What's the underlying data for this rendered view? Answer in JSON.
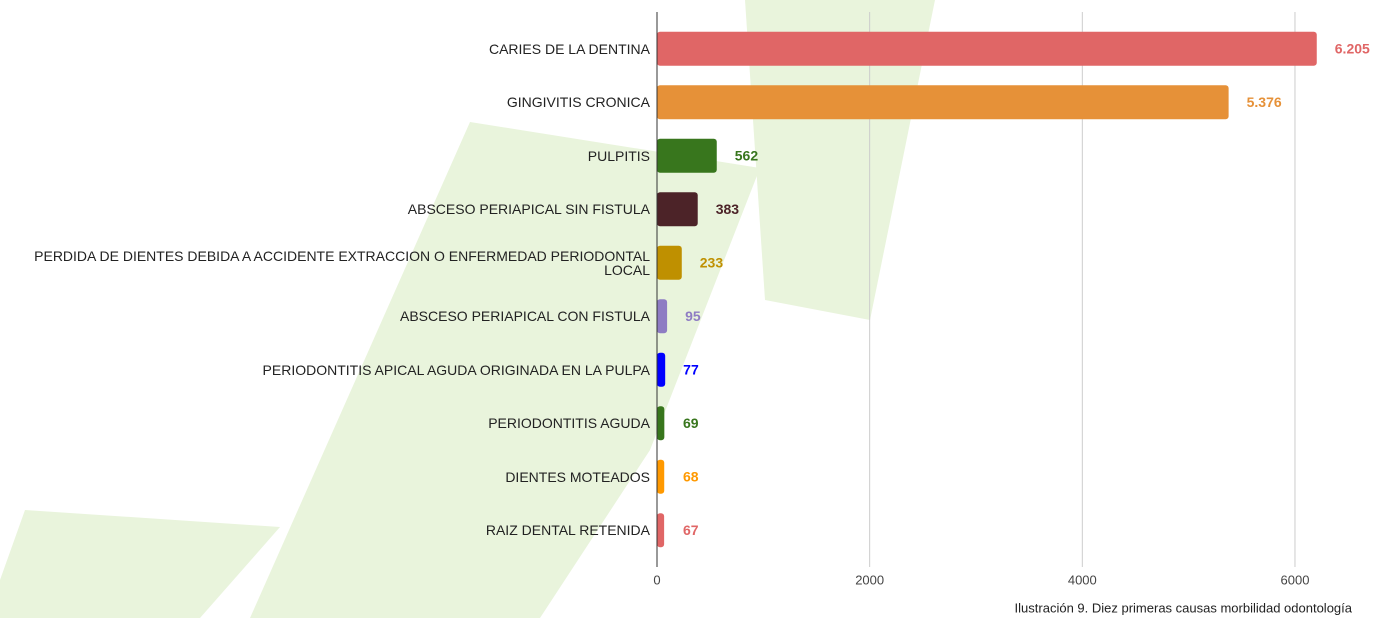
{
  "chart_data": {
    "type": "bar",
    "orientation": "horizontal",
    "caption": "Ilustración 9. Diez primeras causas morbilidad odontología",
    "categories": [
      "CARIES DE LA DENTINA",
      "GINGIVITIS CRONICA",
      "PULPITIS",
      "ABSCESO PERIAPICAL SIN FISTULA",
      "PERDIDA DE DIENTES DEBIDA A ACCIDENTE EXTRACCION O ENFERMEDAD PERIODONTAL LOCAL",
      "ABSCESO PERIAPICAL CON FISTULA",
      "PERIODONTITIS APICAL AGUDA ORIGINADA EN LA PULPA",
      "PERIODONTITIS AGUDA",
      "DIENTES MOTEADOS",
      "RAIZ DENTAL RETENIDA"
    ],
    "values": [
      6205,
      5376,
      562,
      383,
      233,
      95,
      77,
      69,
      68,
      67
    ],
    "value_labels": [
      "6.205",
      "5.376",
      "562",
      "383",
      "233",
      "95",
      "77",
      "69",
      "68",
      "67"
    ],
    "colors": [
      "#e06666",
      "#e69138",
      "#38761d",
      "#4c2328",
      "#bf9000",
      "#8e7cc3",
      "#0000ff",
      "#38761d",
      "#ff9900",
      "#e06666"
    ],
    "xlim": [
      0,
      6400
    ],
    "xticks": [
      0,
      2000,
      4000,
      6000
    ],
    "grid": true
  }
}
